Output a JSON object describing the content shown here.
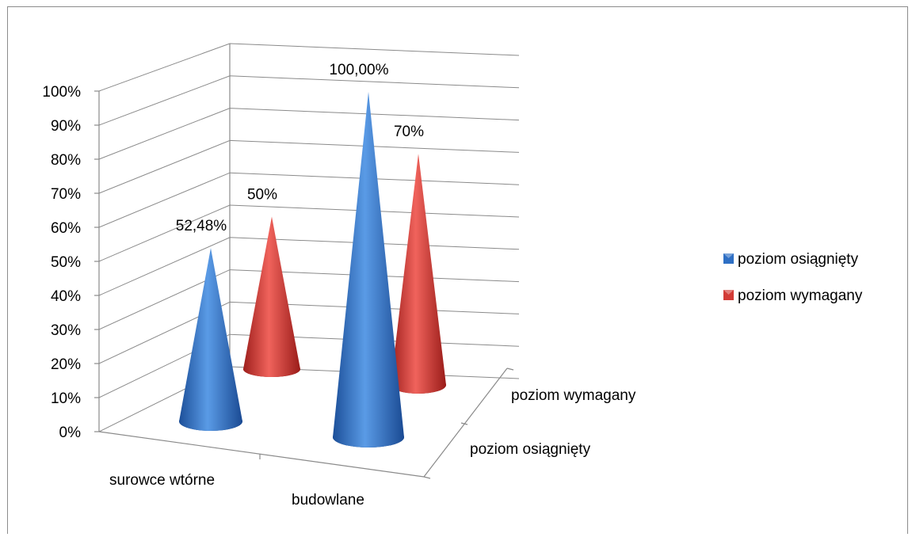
{
  "chart_data": {
    "type": "bar",
    "shape": "cone-3d",
    "categories": [
      "surowce wtórne",
      "budowlane"
    ],
    "series": [
      {
        "name": "poziom osiągnięty",
        "values": [
          52.48,
          100.0
        ],
        "labels": [
          "52,48%",
          "100,00%"
        ]
      },
      {
        "name": "poziom wymagany",
        "values": [
          50,
          70
        ],
        "labels": [
          "50%",
          "70%"
        ]
      }
    ],
    "y_ticks": [
      "0%",
      "10%",
      "20%",
      "30%",
      "40%",
      "50%",
      "60%",
      "70%",
      "80%",
      "90%",
      "100%"
    ],
    "ylim": [
      0,
      100
    ],
    "depth_labels": [
      "poziom osiągnięty",
      "poziom wymagany"
    ],
    "legend_position": "right",
    "grid": true
  },
  "colors": {
    "series_1": "#2e6fc4",
    "series_2": "#d23b36"
  }
}
